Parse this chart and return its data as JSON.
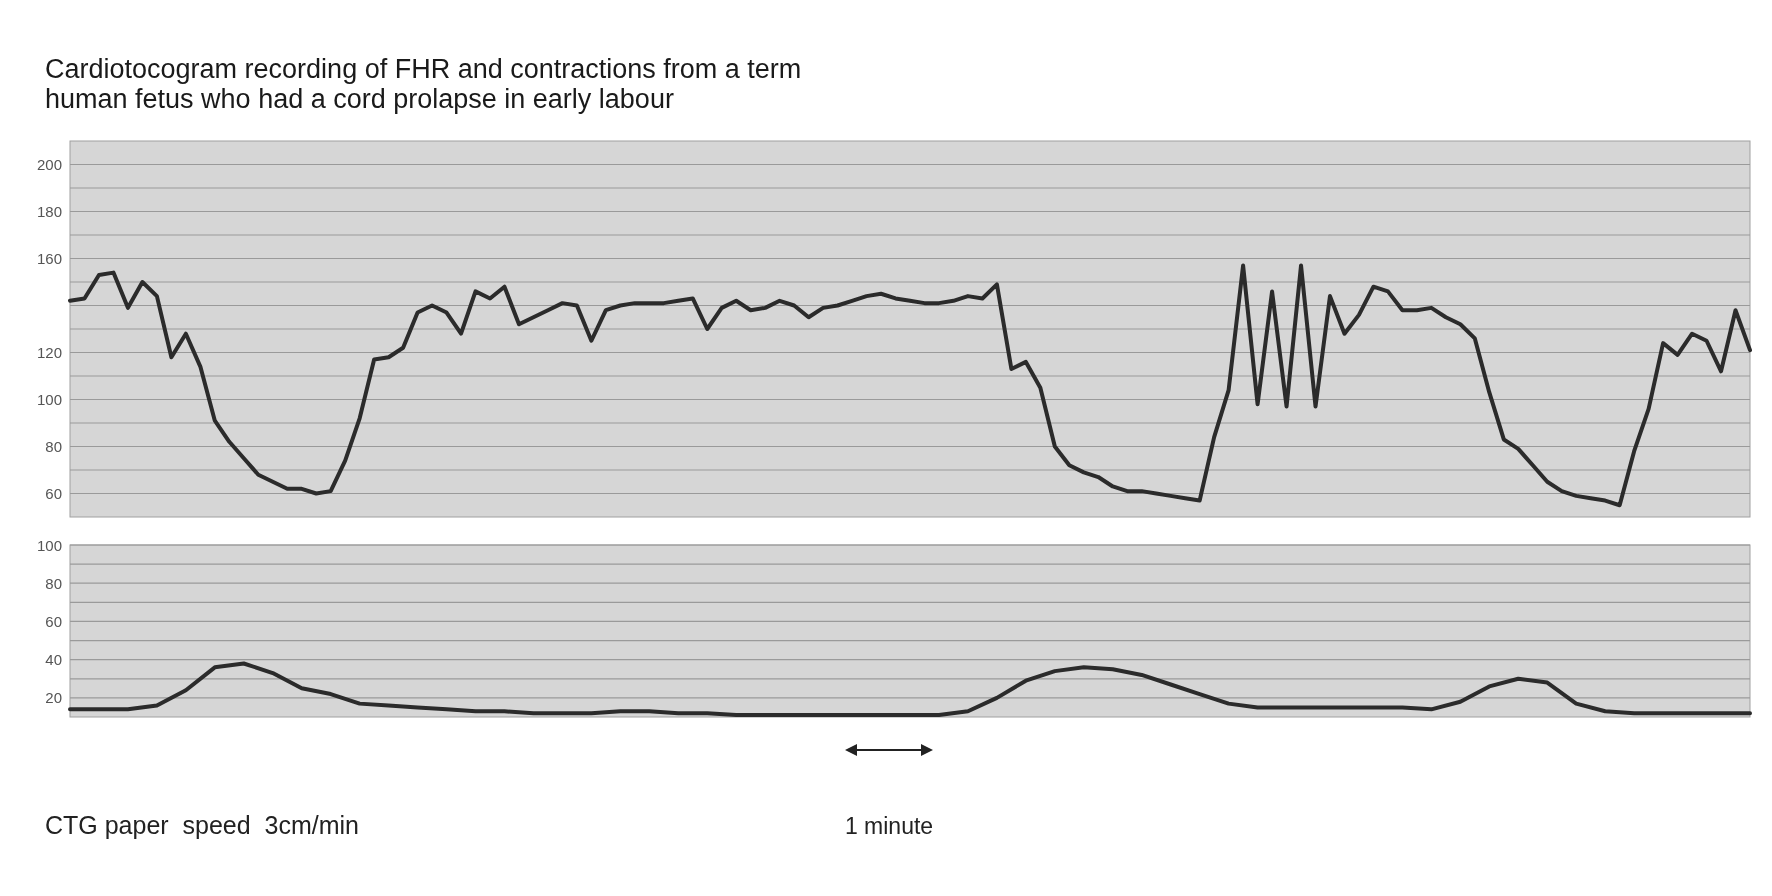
{
  "chart_data": [
    {
      "type": "line",
      "title": "Cardiotocogram recording of FHR and contractions from a term\nhuman fetus who had a cord prolapse in early labour",
      "categories": [
        null,
        null,
        null,
        null,
        null,
        null,
        null,
        null,
        null,
        null,
        null,
        null,
        null,
        null,
        null,
        null,
        null,
        null,
        null,
        null,
        null,
        null,
        null,
        null,
        null,
        null,
        null,
        null,
        null,
        null,
        null,
        null,
        null,
        null,
        null,
        null,
        null,
        null,
        null,
        null,
        null,
        null,
        null,
        null,
        null,
        null,
        null,
        null,
        null,
        null,
        null,
        null,
        null,
        null,
        null,
        null,
        null,
        null,
        null,
        null,
        null,
        null,
        null,
        null,
        null,
        null,
        null,
        null,
        null,
        null,
        null,
        null,
        null,
        null,
        null,
        null,
        null,
        null,
        null,
        null,
        null,
        null,
        null,
        null,
        null,
        null,
        null,
        null,
        null,
        null,
        null,
        null,
        null,
        null,
        null,
        null,
        null,
        null,
        null,
        null,
        null,
        null,
        null,
        null,
        null,
        null,
        null,
        null,
        null,
        null,
        null,
        null,
        null,
        null,
        null,
        null,
        null
      ],
      "series": [
        {
          "color": "#2b2b2b",
          "values": [
            142,
            143,
            153,
            154,
            139,
            150,
            144,
            118,
            128,
            114,
            91,
            82,
            75,
            68,
            65,
            62,
            62,
            60,
            61,
            74,
            92,
            117,
            118,
            122,
            137,
            140,
            137,
            128,
            146,
            143,
            148,
            132,
            135,
            138,
            141,
            140,
            125,
            138,
            140,
            141,
            141,
            141,
            142,
            143,
            130,
            139,
            142,
            138,
            139,
            142,
            140,
            135,
            139,
            140,
            142,
            144,
            145,
            143,
            142,
            141,
            141,
            142,
            144,
            143,
            149,
            113,
            116,
            105,
            80,
            72,
            69,
            67,
            63,
            61,
            61,
            60,
            59,
            58,
            57,
            84,
            104,
            157,
            98,
            146,
            97,
            157,
            97,
            144,
            128,
            136,
            148,
            146,
            138,
            138,
            139,
            135,
            132,
            126,
            103,
            83,
            79,
            72,
            65,
            61,
            59,
            58,
            57,
            55,
            78,
            96,
            124,
            119,
            128,
            125,
            112,
            138,
            121
          ]
        }
      ],
      "ylim": [
        50,
        210
      ],
      "yticks": [
        60,
        {
          "value": 70,
          "label": null
        },
        80,
        {
          "value": 90,
          "label": null
        },
        100,
        {
          "value": 110,
          "label": null
        },
        120,
        {
          "value": 130,
          "label": null
        },
        {
          "value": 140,
          "label": null
        },
        {
          "value": 150,
          "label": null
        },
        160,
        {
          "value": 170,
          "label": null
        },
        180,
        {
          "value": 190,
          "label": null
        },
        200
      ],
      "grid": "y",
      "tick_labels": "y"
    },
    {
      "type": "line",
      "categories": [
        null,
        null,
        null,
        null,
        null,
        null,
        null,
        null,
        null,
        null,
        null,
        null,
        null,
        null,
        null,
        null,
        null,
        null,
        null,
        null,
        null,
        null,
        null,
        null,
        null,
        null,
        null,
        null,
        null,
        null,
        null,
        null,
        null,
        null,
        null,
        null,
        null,
        null,
        null,
        null,
        null,
        null,
        null,
        null,
        null,
        null,
        null,
        null,
        null,
        null,
        null,
        null,
        null,
        null,
        null,
        null,
        null,
        null,
        null
      ],
      "series": [
        {
          "color": "#2b2b2b",
          "values": [
            14,
            14,
            14,
            16,
            24,
            36,
            38,
            33,
            25,
            22,
            17,
            16,
            15,
            14,
            13,
            13,
            12,
            12,
            12,
            13,
            13,
            12,
            12,
            11,
            11,
            11,
            11,
            11,
            11,
            11,
            11,
            13,
            20,
            29,
            34,
            36,
            35,
            32,
            27,
            22,
            17,
            15,
            15,
            15,
            15,
            15,
            15,
            14,
            18,
            26,
            30,
            28,
            17,
            13,
            12,
            12,
            12,
            12,
            12
          ]
        }
      ],
      "ylim": [
        10,
        100
      ],
      "yticks": [
        20,
        {
          "value": 30,
          "label": null
        },
        40,
        {
          "value": 50,
          "label": null
        },
        60,
        {
          "value": 70,
          "label": null
        },
        80,
        {
          "value": 90,
          "label": null
        },
        100
      ],
      "grid": "y",
      "tick_labels": "y",
      "annotations": [
        "CTG paper  speed  3cm/min",
        "1 minute"
      ]
    }
  ]
}
